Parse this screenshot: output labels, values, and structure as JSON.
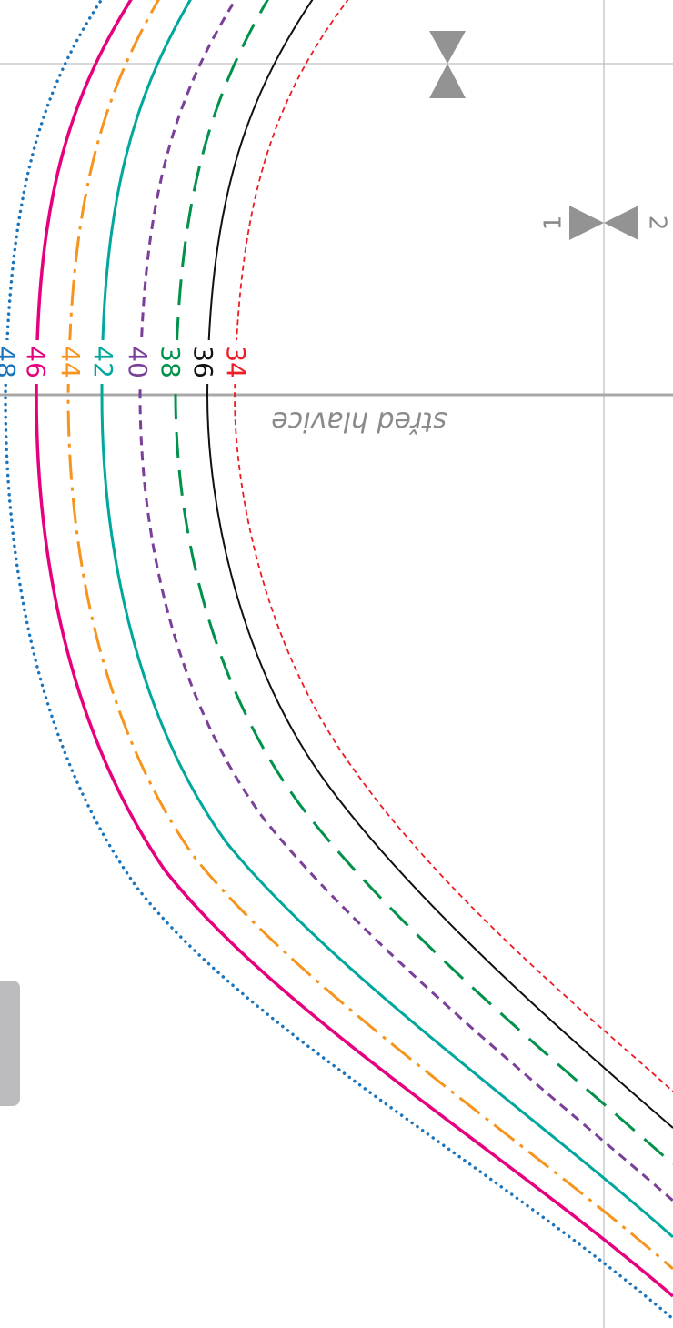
{
  "center_label": "střed hlavice",
  "notch_labels": [
    "1",
    "2"
  ],
  "sizes": [
    {
      "label": "48",
      "color": "#1b75bc",
      "style": "dotted"
    },
    {
      "label": "46",
      "color": "#e6007e",
      "style": "solid-thick"
    },
    {
      "label": "44",
      "color": "#f7941d",
      "style": "dash-dot"
    },
    {
      "label": "42",
      "color": "#00a79d",
      "style": "solid"
    },
    {
      "label": "40",
      "color": "#7a3f98",
      "style": "short-dash"
    },
    {
      "label": "38",
      "color": "#00924a",
      "style": "long-dash"
    },
    {
      "label": "36",
      "color": "#111111",
      "style": "solid-thin"
    },
    {
      "label": "34",
      "color": "#ed1c24",
      "style": "fine-dash"
    }
  ],
  "guide_color": "#a8a8a8",
  "notch_color": "#939393",
  "tab_color": "#bcbcbe"
}
